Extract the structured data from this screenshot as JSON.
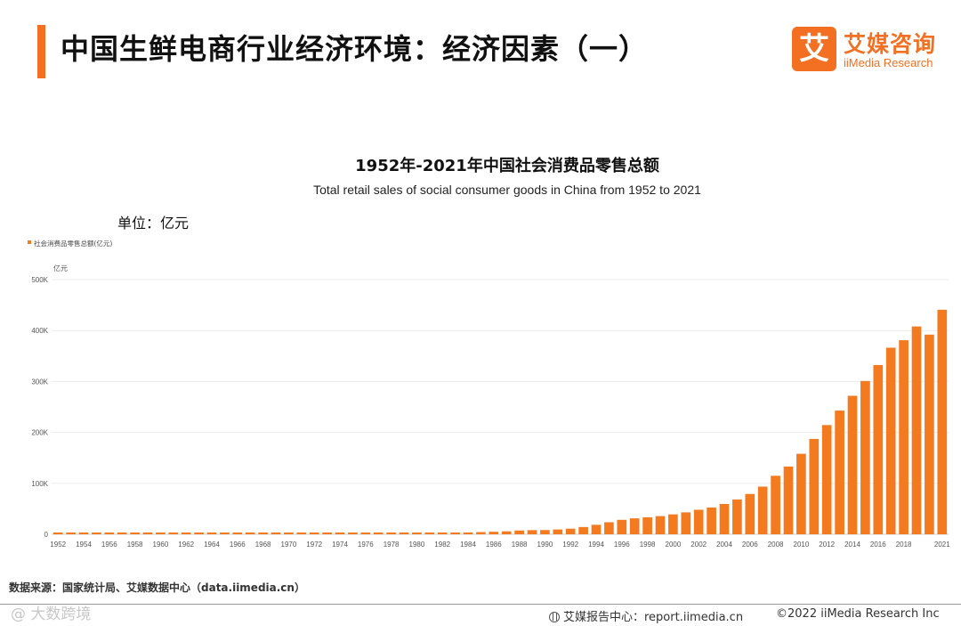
{
  "page": {
    "title": "中国生鲜电商行业经济环境：经济因素（一）",
    "unit_label": "单位：亿元"
  },
  "logo": {
    "mark": "艾",
    "name_cn": "艾媒咨询",
    "name_en": "iiMedia Research"
  },
  "footer": {
    "source": "数据来源：国家统计局、艾媒数据中心（data.iimedia.cn）",
    "watermark": "@ 大数跨境",
    "report_center": "艾媒报告中心：report.iimedia.cn",
    "copyright": "©2022  iiMedia Research  Inc"
  },
  "colors": {
    "accent": "#f36f21",
    "bar": "#f47a20",
    "grid": "#ececec"
  },
  "chart_data": {
    "type": "bar",
    "title": "1952年-2021年中国社会消费品零售总额",
    "subtitle": "Total retail sales of social consumer goods in China from 1952 to 2021",
    "legend": "社会消费品零售总额(亿元)",
    "legend_position": "top-left",
    "ylabel": "亿元",
    "ylim": [
      0,
      500000
    ],
    "yticks": [
      0,
      100000,
      200000,
      300000,
      400000,
      500000
    ],
    "ytick_labels": [
      "0",
      "100K",
      "200K",
      "300K",
      "400K",
      "500K"
    ],
    "grid": true,
    "categories": [
      1952,
      1953,
      1954,
      1955,
      1956,
      1957,
      1958,
      1959,
      1960,
      1961,
      1962,
      1963,
      1964,
      1965,
      1966,
      1967,
      1968,
      1969,
      1970,
      1971,
      1972,
      1973,
      1974,
      1975,
      1976,
      1977,
      1978,
      1979,
      1980,
      1981,
      1982,
      1983,
      1984,
      1985,
      1986,
      1987,
      1988,
      1989,
      1990,
      1991,
      1992,
      1993,
      1994,
      1995,
      1996,
      1997,
      1998,
      1999,
      2000,
      2001,
      2002,
      2003,
      2004,
      2005,
      2006,
      2007,
      2008,
      2009,
      2010,
      2011,
      2012,
      2013,
      2014,
      2015,
      2016,
      2017,
      2018,
      2019,
      2020,
      2021
    ],
    "xtick_labels": [
      "1952",
      "1954",
      "1956",
      "1958",
      "1960",
      "1962",
      "1964",
      "1966",
      "1968",
      "1970",
      "1972",
      "1974",
      "1976",
      "1978",
      "1980",
      "1982",
      "1984",
      "1986",
      "1988",
      "1990",
      "1992",
      "1994",
      "1996",
      "1998",
      "2000",
      "2002",
      "2004",
      "2006",
      "2008",
      "2010",
      "2012",
      "2014",
      "2016",
      "2018",
      "2021"
    ],
    "values": [
      277,
      348,
      381,
      392,
      461,
      474,
      548,
      638,
      696,
      607,
      604,
      605,
      638,
      670,
      732,
      770,
      737,
      801,
      858,
      929,
      1023,
      1106,
      1163,
      1271,
      1339,
      1433,
      1559,
      1800,
      2140,
      2350,
      2570,
      2849,
      3376,
      4305,
      4950,
      5820,
      7440,
      8101,
      8300,
      9416,
      10994,
      14270,
      18623,
      23614,
      28360,
      31253,
      33378,
      35648,
      39106,
      43055,
      48136,
      52516,
      59501,
      68353,
      79145,
      93572,
      114830,
      133048,
      158008,
      187206,
      214433,
      242843,
      271896,
      300931,
      332316,
      366262,
      380987,
      408017,
      391981,
      440823
    ]
  }
}
